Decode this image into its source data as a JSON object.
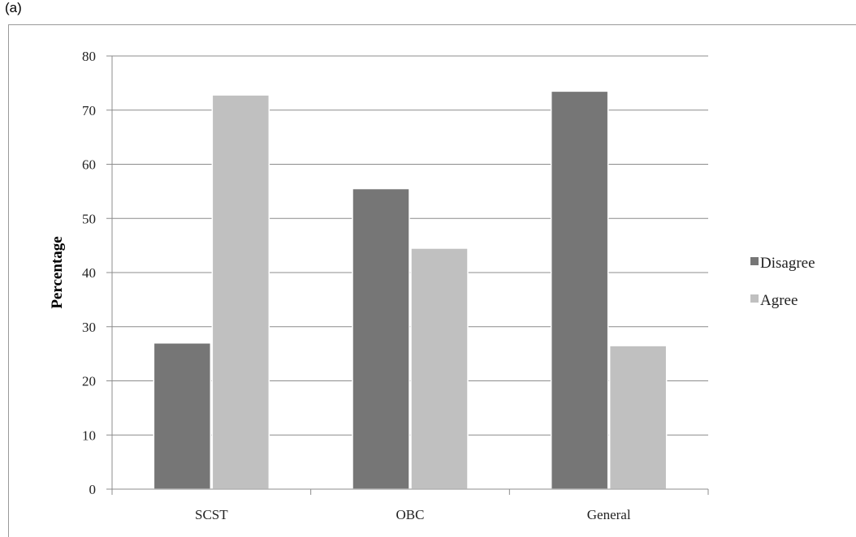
{
  "panel_label": "(a)",
  "chart_data": {
    "type": "bar",
    "categories": [
      "SCST",
      "OBC",
      "General"
    ],
    "series": [
      {
        "name": "Disagree",
        "values": [
          27,
          55.5,
          73.5
        ],
        "color": "#767676"
      },
      {
        "name": "Agree",
        "values": [
          72.8,
          44.5,
          26.5
        ],
        "color": "#c0c0c0"
      }
    ],
    "title": "",
    "xlabel": "",
    "ylabel": "Percentage",
    "ylim": [
      0,
      80
    ],
    "yticks": [
      0,
      10,
      20,
      30,
      40,
      50,
      60,
      70,
      80
    ],
    "grid": true,
    "legend_position": "right"
  }
}
